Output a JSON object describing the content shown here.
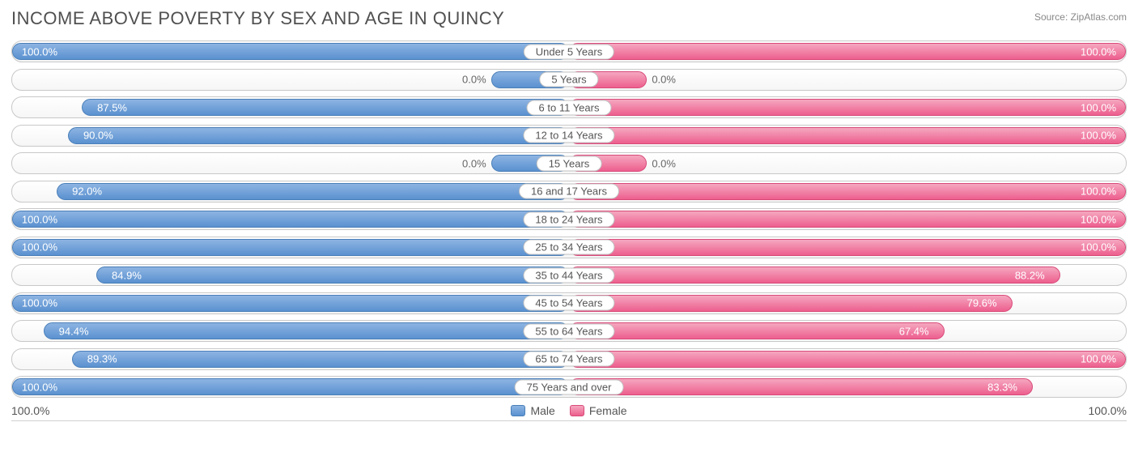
{
  "title": "INCOME ABOVE POVERTY BY SEX AND AGE IN QUINCY",
  "source": "Source: ZipAtlas.com",
  "axis": {
    "left_label": "100.0%",
    "right_label": "100.0%",
    "max": 100.0
  },
  "legend": {
    "male": "Male",
    "female": "Female"
  },
  "colors": {
    "male_top": "#8db4e2",
    "male_bot": "#5a91d0",
    "male_border": "#4a7fb8",
    "female_top": "#f5a7c0",
    "female_bot": "#ed5f8e",
    "female_border": "#d84a78",
    "row_border": "#c8c8c8",
    "text": "#555555",
    "title": "#505050"
  },
  "min_bar_pct": 14,
  "rows": [
    {
      "label": "Under 5 Years",
      "male": 100.0,
      "female": 100.0
    },
    {
      "label": "5 Years",
      "male": 0.0,
      "female": 0.0
    },
    {
      "label": "6 to 11 Years",
      "male": 87.5,
      "female": 100.0
    },
    {
      "label": "12 to 14 Years",
      "male": 90.0,
      "female": 100.0
    },
    {
      "label": "15 Years",
      "male": 0.0,
      "female": 0.0
    },
    {
      "label": "16 and 17 Years",
      "male": 92.0,
      "female": 100.0
    },
    {
      "label": "18 to 24 Years",
      "male": 100.0,
      "female": 100.0
    },
    {
      "label": "25 to 34 Years",
      "male": 100.0,
      "female": 100.0
    },
    {
      "label": "35 to 44 Years",
      "male": 84.9,
      "female": 88.2
    },
    {
      "label": "45 to 54 Years",
      "male": 100.0,
      "female": 79.6
    },
    {
      "label": "55 to 64 Years",
      "male": 94.4,
      "female": 67.4
    },
    {
      "label": "65 to 74 Years",
      "male": 89.3,
      "female": 100.0
    },
    {
      "label": "75 Years and over",
      "male": 100.0,
      "female": 83.3
    }
  ]
}
